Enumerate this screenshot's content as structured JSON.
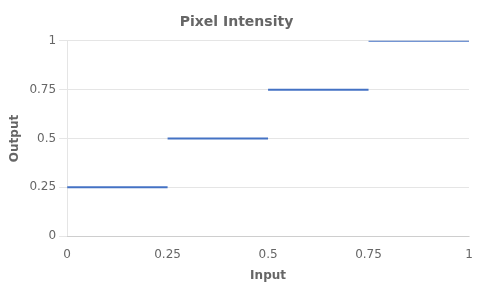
{
  "chart_data": {
    "type": "segments",
    "title": "Pixel Intensity",
    "x_label": "Input",
    "y_label": "Output",
    "segments": [
      {
        "x_start": 0.0,
        "x_end": 0.25,
        "y": 0.25
      },
      {
        "x_start": 0.25,
        "x_end": 0.5,
        "y": 0.5
      },
      {
        "x_start": 0.5,
        "x_end": 0.75,
        "y": 0.75
      },
      {
        "x_start": 0.75,
        "x_end": 1.0,
        "y": 1.0
      }
    ],
    "color": "#4472C4",
    "xlim": [
      0,
      1
    ],
    "ylim": [
      0,
      1
    ],
    "xticks": [
      0,
      0.25,
      0.5,
      0.75,
      1
    ],
    "yticks": [
      0,
      0.25,
      0.5,
      0.75,
      1
    ],
    "grid": "y"
  }
}
